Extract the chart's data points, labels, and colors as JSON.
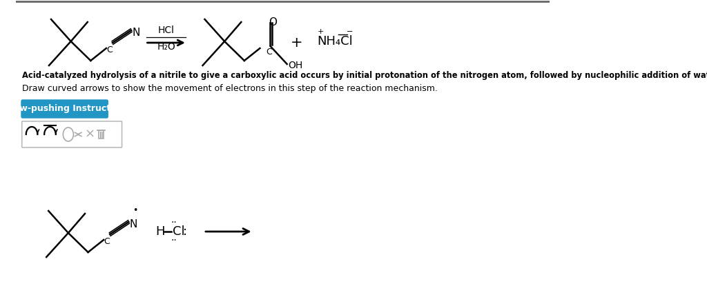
{
  "background_color": "#ffffff",
  "bold_text": "Acid-catalyzed hydrolysis of a nitrile to give a carboxylic acid occurs by initial protonation of the nitrogen atom, followed by nucleophilic addition of water.",
  "normal_text": "Draw curved arrows to show the movement of electrons in this step of the reaction mechanism.",
  "button_text": "Arrow-pushing Instructions",
  "button_bg": "#2196c4",
  "button_text_color": "#ffffff",
  "figsize": [
    10.24,
    4.15
  ],
  "dpi": 100
}
